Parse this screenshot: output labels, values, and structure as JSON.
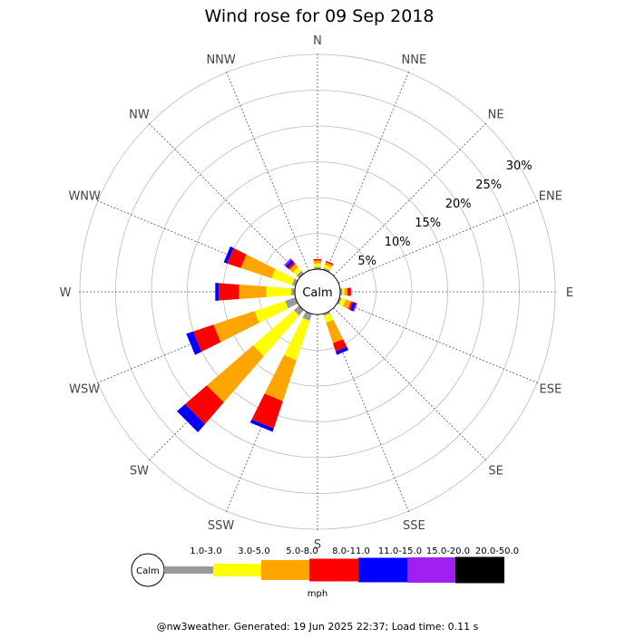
{
  "chart_data": {
    "type": "wind-rose",
    "title": "Wind rose for 09 Sep 2018",
    "calm_label": "Calm",
    "directions": [
      "N",
      "NNE",
      "NE",
      "ENE",
      "E",
      "ESE",
      "SE",
      "SSE",
      "S",
      "SSW",
      "SW",
      "WSW",
      "W",
      "WNW",
      "NW",
      "NNW"
    ],
    "ring_labels": [
      "5%",
      "10%",
      "15%",
      "20%",
      "25%",
      "30%"
    ],
    "ring_values": [
      5,
      10,
      15,
      20,
      25,
      30
    ],
    "r_max_percent": 30,
    "calm_percent": 0,
    "speed_bins": [
      {
        "label": "1.0-3.0",
        "color": "#999999"
      },
      {
        "label": "3.0-5.0",
        "color": "#ffff00"
      },
      {
        "label": "5.0-8.0",
        "color": "#ffa500"
      },
      {
        "label": "8.0-11.0",
        "color": "#ff0000"
      },
      {
        "label": "11.0-15.0",
        "color": "#0000ff"
      },
      {
        "label": "15.0-20.0",
        "color": "#a020f0"
      },
      {
        "label": "20.0-50.0",
        "color": "#000000"
      }
    ],
    "speed_unit": "mph",
    "series": [
      {
        "direction": "N",
        "values": [
          0.3,
          0.5,
          0.4,
          0.2,
          0.0,
          0.0,
          0.0
        ]
      },
      {
        "direction": "NNE",
        "values": [
          0.3,
          0.4,
          0.4,
          0.2,
          0.0,
          0.0,
          0.0
        ]
      },
      {
        "direction": "NE",
        "values": [
          0.0,
          0.0,
          0.0,
          0.0,
          0.0,
          0.0,
          0.0
        ]
      },
      {
        "direction": "ENE",
        "values": [
          0.0,
          0.0,
          0.0,
          0.0,
          0.0,
          0.0,
          0.0
        ]
      },
      {
        "direction": "E",
        "values": [
          0.3,
          0.3,
          0.4,
          0.5,
          0.0,
          0.0,
          0.0
        ]
      },
      {
        "direction": "ESE",
        "values": [
          0.3,
          0.6,
          0.8,
          0.3,
          0.4,
          0.2,
          0.0
        ]
      },
      {
        "direction": "SE",
        "values": [
          0.0,
          0.0,
          0.0,
          0.0,
          0.0,
          0.0,
          0.0
        ]
      },
      {
        "direction": "SSE",
        "values": [
          0.3,
          1.0,
          3.0,
          1.2,
          0.5,
          0.0,
          0.0
        ]
      },
      {
        "direction": "S",
        "values": [
          0.0,
          0.0,
          0.0,
          0.0,
          0.0,
          0.0,
          0.0
        ]
      },
      {
        "direction": "SSW",
        "values": [
          1.0,
          5.8,
          6.0,
          4.0,
          0.5,
          0.0,
          0.0
        ]
      },
      {
        "direction": "SW",
        "values": [
          1.0,
          7.5,
          8.5,
          4.0,
          1.5,
          0.0,
          0.0
        ]
      },
      {
        "direction": "WSW",
        "values": [
          1.5,
          4.5,
          6.0,
          3.0,
          1.0,
          0.0,
          0.0
        ]
      },
      {
        "direction": "W",
        "values": [
          0.5,
          3.5,
          3.8,
          2.8,
          0.5,
          0.0,
          0.0
        ]
      },
      {
        "direction": "WNW",
        "values": [
          0.5,
          3.0,
          4.5,
          2.0,
          0.5,
          0.0,
          0.0
        ]
      },
      {
        "direction": "NW",
        "values": [
          0.5,
          0.7,
          0.6,
          0.3,
          0.4,
          0.3,
          0.0
        ]
      },
      {
        "direction": "NNW",
        "values": [
          0.0,
          0.0,
          0.0,
          0.0,
          0.0,
          0.0,
          0.0
        ]
      }
    ]
  },
  "footer": {
    "text": "@nw3weather. Generated: 19 Jun 2025 22:37; Load time: 0.11 s"
  }
}
